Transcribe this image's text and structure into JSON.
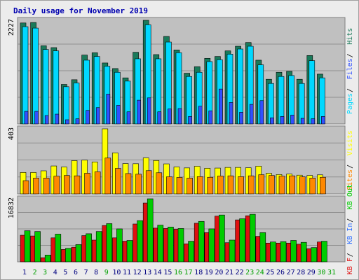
{
  "chart_data": {
    "type": "bar",
    "title": "Daily usage for November 2019",
    "categories": [
      "1",
      "2",
      "3",
      "4",
      "5",
      "6",
      "7",
      "8",
      "9",
      "10",
      "11",
      "12",
      "13",
      "14",
      "15",
      "16",
      "17",
      "18",
      "19",
      "20",
      "21",
      "22",
      "23",
      "24",
      "25",
      "26",
      "27",
      "28",
      "29",
      "30",
      "31"
    ],
    "weekend_days": [
      "2",
      "3",
      "9",
      "16",
      "17",
      "23",
      "24",
      "30",
      "31"
    ],
    "panels": [
      {
        "id": "hits",
        "max_label": "2227",
        "ylim": [
          0,
          2227
        ],
        "series": [
          {
            "name": "Hits",
            "color": "#1a7a5a",
            "values": [
              2170,
              2180,
              1680,
              1640,
              850,
              950,
              1480,
              1530,
              1310,
              1190,
              990,
              1540,
              2227,
              1490,
              1880,
              1590,
              1090,
              1230,
              1410,
              1450,
              1570,
              1670,
              1750,
              1370,
              960,
              1110,
              1130,
              960,
              1470,
              1070
            ]
          },
          {
            "name": "Files",
            "color": "#00d8ff",
            "values": [
              2090,
              2060,
              1600,
              1570,
              800,
              880,
              1370,
              1450,
              1240,
              1110,
              920,
              1400,
              2130,
              1400,
              1760,
              1530,
              1020,
              1110,
              1340,
              1380,
              1500,
              1610,
              1670,
              1270,
              870,
              1020,
              1040,
              870,
              1360,
              990
            ]
          },
          {
            "name": "Pages",
            "color": "#3050ff",
            "values": [
              270,
              270,
              180,
              210,
              90,
              110,
              290,
              350,
              640,
              400,
              260,
              510,
              560,
              260,
              320,
              330,
              160,
              380,
              280,
              750,
              460,
              250,
              420,
              500,
              130,
              160,
              190,
              120,
              110,
              160
            ]
          }
        ],
        "label_order": [
          "Pages",
          "Files",
          "Hits"
        ],
        "label_colors": {
          "Pages": "#00d8ff",
          "Files": "#3050ff",
          "Hits": "#1a7a5a"
        }
      },
      {
        "id": "visits",
        "max_label": "403",
        "ylim": [
          0,
          403
        ],
        "series": [
          {
            "name": "Visits",
            "color": "#ffff00",
            "values": [
              133,
              133,
              143,
              173,
              166,
              206,
              209,
              198,
              403,
              254,
              188,
              187,
              223,
              207,
              186,
              167,
              161,
              171,
              159,
              160,
              164,
              164,
              162,
              172,
              128,
              120,
              123,
              116,
              114,
              118
            ]
          },
          {
            "name": "Sites",
            "color": "#ff8800",
            "values": [
              82,
              98,
              98,
              110,
              114,
              112,
              128,
              137,
              222,
              158,
              126,
              122,
              144,
              131,
              106,
              102,
              98,
              107,
              103,
              111,
              112,
              107,
              112,
              119,
              114,
              110,
              112,
              106,
              98,
              103
            ]
          }
        ],
        "label_order": [
          "Sites",
          "Visits"
        ],
        "label_colors": {
          "Sites": "#ff8800",
          "Visits": "#ffff00"
        }
      },
      {
        "id": "kbytes",
        "max_label": "16832",
        "ylim": [
          0,
          16832
        ],
        "series": [
          {
            "name": "KB F",
            "color": "#e01010",
            "values": [
              7100,
              6900,
              1100,
              6400,
              3300,
              3900,
              7000,
              5800,
              9700,
              6400,
              5500,
              10100,
              15700,
              9000,
              8900,
              8700,
              4800,
              10300,
              7800,
              12200,
              5100,
              11200,
              12300,
              6800,
              5000,
              5000,
              5000,
              4700,
              3500,
              5300
            ]
          },
          {
            "name": "KB In",
            "color": "#3070ff",
            "values": [
              0,
              0,
              0,
              0,
              0,
              0,
              0,
              0,
              0,
              0,
              0,
              0,
              0,
              0,
              0,
              0,
              0,
              0,
              0,
              0,
              0,
              0,
              0,
              0,
              0,
              0,
              0,
              0,
              0,
              0
            ]
          },
          {
            "name": "KB Out",
            "color": "#00cc00",
            "values": [
              8300,
              8100,
              1800,
              7400,
              3600,
              4600,
              7500,
              8100,
              10200,
              8800,
              5700,
              11000,
              16832,
              9800,
              9300,
              8900,
              5500,
              10800,
              8800,
              12500,
              5800,
              11500,
              12700,
              7800,
              5300,
              5400,
              5700,
              5200,
              3800,
              5500
            ]
          }
        ],
        "label_order": [
          "KB F",
          "KB In",
          "KB Out"
        ],
        "label_colors": {
          "KB F": "#e01010",
          "KB In": "#3070ff",
          "KB Out": "#00cc00"
        }
      }
    ],
    "separator": "/"
  },
  "colors": {
    "plot_bg": "#c0c0c0",
    "title": "#0000b0",
    "weekday": "#000080",
    "weekend": "#00a000",
    "grid": "#909090"
  }
}
